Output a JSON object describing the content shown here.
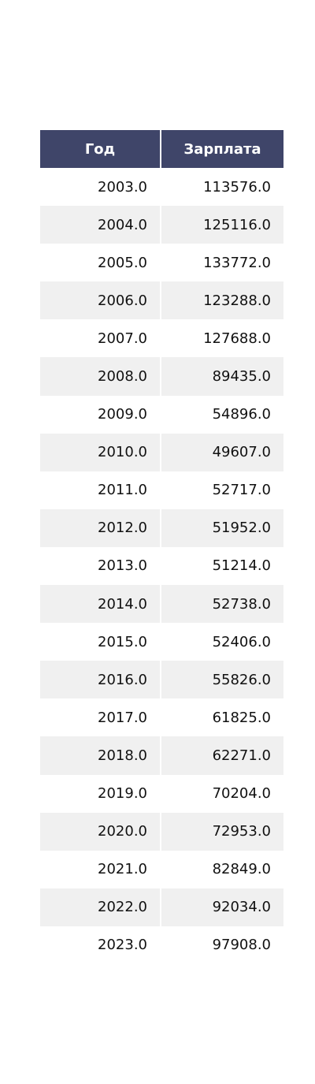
{
  "chart_data": {
    "type": "table",
    "columns": [
      "Год",
      "Зарплата"
    ],
    "rows": [
      [
        "2003.0",
        "113576.0"
      ],
      [
        "2004.0",
        "125116.0"
      ],
      [
        "2005.0",
        "133772.0"
      ],
      [
        "2006.0",
        "123288.0"
      ],
      [
        "2007.0",
        "127688.0"
      ],
      [
        "2008.0",
        "89435.0"
      ],
      [
        "2009.0",
        "54896.0"
      ],
      [
        "2010.0",
        "49607.0"
      ],
      [
        "2011.0",
        "52717.0"
      ],
      [
        "2012.0",
        "51952.0"
      ],
      [
        "2013.0",
        "51214.0"
      ],
      [
        "2014.0",
        "52738.0"
      ],
      [
        "2015.0",
        "52406.0"
      ],
      [
        "2016.0",
        "55826.0"
      ],
      [
        "2017.0",
        "61825.0"
      ],
      [
        "2018.0",
        "62271.0"
      ],
      [
        "2019.0",
        "70204.0"
      ],
      [
        "2020.0",
        "72953.0"
      ],
      [
        "2021.0",
        "82849.0"
      ],
      [
        "2022.0",
        "92034.0"
      ],
      [
        "2023.0",
        "97908.0"
      ]
    ],
    "header_color": "#3f4569",
    "stripe_color": "#f0f0f0"
  }
}
